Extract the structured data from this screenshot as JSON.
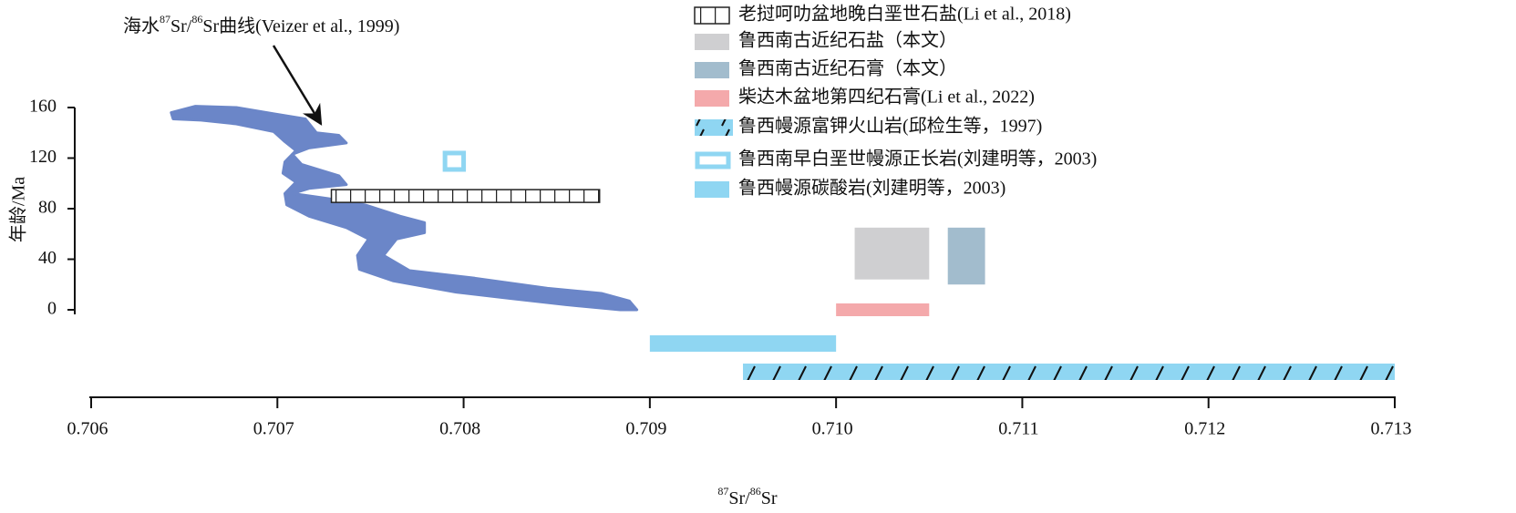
{
  "chart_data": {
    "type": "range",
    "annotation": [
      "海水",
      "87",
      "Sr/",
      "86",
      "Sr曲线(Veizer et al., 1999)"
    ],
    "xlabel": [
      "87",
      "Sr/",
      "86",
      "Sr"
    ],
    "ylabel": "年龄/Ma",
    "xlim": [
      0.706,
      0.713
    ],
    "xticks": [
      0.706,
      0.707,
      0.708,
      0.709,
      {
        "value": 0.71,
        "label": "0.710"
      },
      0.711,
      0.712,
      0.713
    ],
    "ylim": [
      0,
      160
    ],
    "yticks": [
      0,
      40,
      80,
      120,
      160
    ],
    "curve": {
      "color": "#6b86c8",
      "x": [
        0.70643,
        0.70656,
        0.70678,
        0.70698,
        0.70715,
        0.70721,
        0.70733,
        0.70737,
        0.70717,
        0.70708,
        0.70713,
        0.70733,
        0.70737,
        0.70717,
        0.70708,
        0.70727,
        0.70747,
        0.70766,
        0.70779,
        0.70779,
        0.70764,
        0.70757,
        0.70771,
        0.70806,
        0.70845,
        0.70874,
        0.70889,
        0.70893,
        0.70884,
        0.70855,
        0.70825,
        0.70796,
        0.70762,
        0.70744,
        0.70743,
        0.70749,
        0.70737,
        0.70717,
        0.70705,
        0.70704,
        0.7071,
        0.70703,
        0.70704,
        0.7071,
        0.70704,
        0.70698,
        0.70678,
        0.70659,
        0.70644
      ],
      "y": [
        156,
        161,
        160,
        155,
        151,
        140,
        138,
        132,
        128,
        123,
        115,
        106,
        99,
        96,
        92,
        88,
        83,
        74,
        69,
        61,
        56,
        43,
        31,
        25,
        17,
        13,
        7,
        0,
        0,
        4,
        9,
        14,
        23,
        32,
        43,
        56,
        65,
        74,
        83,
        92,
        101,
        108,
        117,
        126,
        133,
        141,
        147,
        150,
        151
      ]
    },
    "series": [
      {
        "name": "老挝呵叻盆地晚白垩世石盐(Li et al., 2018)",
        "color": "#222222",
        "style": "hatch",
        "x": [
          0.70729,
          0.70873
        ],
        "y": [
          85,
          95
        ]
      },
      {
        "name": "鲁西南古近纪石盐（本文）",
        "color": "#cfcfd1",
        "style": "fill",
        "x": [
          0.7101,
          0.7105
        ],
        "y": [
          24,
          65
        ]
      },
      {
        "name": "鲁西南古近纪石膏（本文）",
        "color": "#a2bccd",
        "style": "fill",
        "x": [
          0.7106,
          0.7108
        ],
        "y": [
          20,
          65
        ]
      },
      {
        "name": "柴达木盆地第四纪石膏(Li et al., 2022)",
        "color": "#f4a9ab",
        "style": "fill",
        "x": [
          0.71,
          0.7105
        ],
        "y": [
          0,
          0
        ]
      },
      {
        "name": "鲁西幔源富钾火山岩(邱检生等，1997)",
        "color": "#8fd6f2",
        "style": "slash",
        "x": [
          0.7095,
          0.713
        ]
      },
      {
        "name": "鲁西南早白垩世幔源正长岩(刘建明等，2003)",
        "color": "#8fd6f2",
        "style": "outline",
        "x": [
          0.7079,
          0.708
        ],
        "y": [
          111,
          124
        ]
      },
      {
        "name": "鲁西幔源碳酸岩(刘建明等，2003)",
        "color": "#8fd6f2",
        "style": "fill",
        "x": [
          0.709,
          0.71
        ]
      }
    ]
  }
}
